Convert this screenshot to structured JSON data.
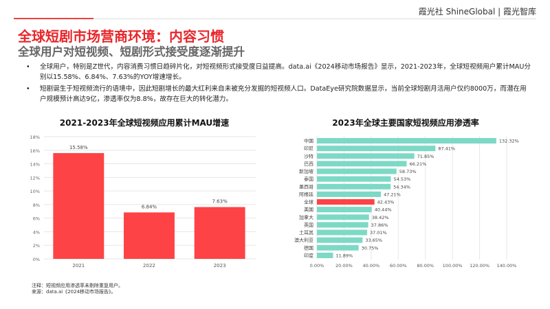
{
  "header": {
    "brand": "霞光社 ShineGlobal | 霞光智库"
  },
  "title": "全球短剧市场营商环境：内容习惯",
  "subtitle": "全球用户对短视频、短剧形式接受度逐渐提升",
  "bullets": [
    "全球用户，特别是Z世代，内容消费习惯日趋碎片化，对短视频形式接受度日益提高。data.ai《2024移动市场报告》显示，2021-2023年，全球短视频用户累计MAU分别以15.58%、6.84%、7.63%的YOY增速增长。",
    "短剧诞生于短视频流行的语境中，因此短剧增长的最大红利来自未被充分发掘的短视频人口。DataEye研究院数据显示，当前全球短剧月活用户仅约8000万，而潜在用户规模预计高达9亿，渗透率仅为8.8%，故存在巨大的转化潜力。"
  ],
  "notes": [
    "注释：短视频应用渗透率未剔除重复用户。",
    "来源：data.ai《2024移动市场报告》。"
  ],
  "colors": {
    "red": "#fd4345",
    "teal": "#7dd9c6"
  },
  "chart_data": [
    {
      "type": "bar",
      "title": "2021-2023年全球短视频应用累计MAU增速",
      "categories": [
        "2021",
        "2022",
        "2023"
      ],
      "values": [
        15.58,
        6.84,
        7.63
      ],
      "labels": [
        "15.58%",
        "6.84%",
        "7.63%"
      ],
      "ylim": [
        0,
        18
      ],
      "yticks": [
        "0%",
        "2%",
        "4%",
        "6%",
        "8%",
        "10%",
        "12%",
        "14%",
        "16%",
        "18%"
      ],
      "grid": true
    },
    {
      "type": "bar",
      "orientation": "horizontal",
      "title": "2023年全球主要国家短视频应用渗透率",
      "categories": [
        "中国",
        "印尼",
        "沙特",
        "巴西",
        "新加坡",
        "泰国",
        "墨西哥",
        "阿根廷",
        "全球",
        "美国",
        "加拿大",
        "英国",
        "土耳其",
        "澳大利亚",
        "德国",
        "印度"
      ],
      "values": [
        132.32,
        87.41,
        71.85,
        66.21,
        58.73,
        54.53,
        54.34,
        47.21,
        42.43,
        40.44,
        38.42,
        37.86,
        37.01,
        33.65,
        30.75,
        11.89
      ],
      "labels": [
        "132.32%",
        "87.41%",
        "71.85%",
        "66.21%",
        "58.73%",
        "54.53%",
        "54.34%",
        "47.21%",
        "42.43%",
        "40.44%",
        "38.42%",
        "37.86%",
        "37.01%",
        "33.65%",
        "30.75%",
        "11.89%"
      ],
      "highlight": "全球",
      "xlim": [
        0,
        140
      ],
      "xticks": [
        "0.00%",
        "20.00%",
        "40.00%",
        "60.00%",
        "80.00%",
        "100.00%",
        "120.00%",
        "140.00%"
      ],
      "grid": true
    }
  ]
}
